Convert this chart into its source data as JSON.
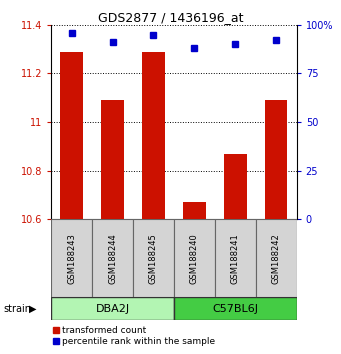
{
  "title": "GDS2877 / 1436196_at",
  "samples": [
    "GSM188243",
    "GSM188244",
    "GSM188245",
    "GSM188240",
    "GSM188241",
    "GSM188242"
  ],
  "red_values": [
    11.29,
    11.09,
    11.29,
    10.67,
    10.87,
    11.09
  ],
  "blue_values": [
    96,
    91,
    95,
    88,
    90,
    92
  ],
  "ylim_left": [
    10.6,
    11.4
  ],
  "ylim_right": [
    0,
    100
  ],
  "yticks_left": [
    10.6,
    10.8,
    11.0,
    11.2,
    11.4
  ],
  "yticks_right": [
    0,
    25,
    50,
    75,
    100
  ],
  "ytick_labels_left": [
    "10.6",
    "10.8",
    "11",
    "11.2",
    "11.4"
  ],
  "ytick_labels_right": [
    "0",
    "25",
    "50",
    "75",
    "100%"
  ],
  "groups": [
    {
      "label": "DBA2J",
      "indices": [
        0,
        1,
        2
      ],
      "color": "#b3f5b3"
    },
    {
      "label": "C57BL6J",
      "indices": [
        3,
        4,
        5
      ],
      "color": "#44cc44"
    }
  ],
  "red_color": "#cc1100",
  "blue_color": "#0000cc",
  "bar_width": 0.55,
  "baseline": 10.6,
  "legend_red_label": "transformed count",
  "legend_blue_label": "percentile rank within the sample",
  "label_area_bg": "#d4d4d4",
  "left_tick_color": "#cc1100",
  "right_tick_color": "#0000cc"
}
